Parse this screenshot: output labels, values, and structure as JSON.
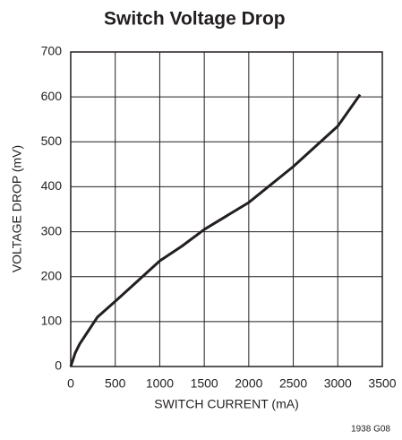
{
  "chart_data": {
    "type": "line",
    "title": "Switch Voltage Drop",
    "x_label": "SWITCH CURRENT (mA)",
    "y_label": "VOLTAGE DROP (mV)",
    "note": "1938 G08",
    "x": [
      0,
      50,
      100,
      200,
      300,
      500,
      750,
      1000,
      1250,
      1500,
      2000,
      2500,
      3000,
      3250
    ],
    "series": [
      {
        "name": "Voltage Drop",
        "color": "#231f20",
        "values": [
          0,
          30,
          50,
          80,
          110,
          145,
          190,
          235,
          268,
          305,
          365,
          445,
          535,
          605
        ]
      }
    ],
    "xlim": [
      0,
      3500
    ],
    "xticks": [
      0,
      500,
      1000,
      1500,
      2000,
      2500,
      3000,
      3500
    ],
    "ylim": [
      0,
      700
    ],
    "yticks": [
      0,
      100,
      200,
      300,
      400,
      500,
      600,
      700
    ],
    "grid": true
  }
}
